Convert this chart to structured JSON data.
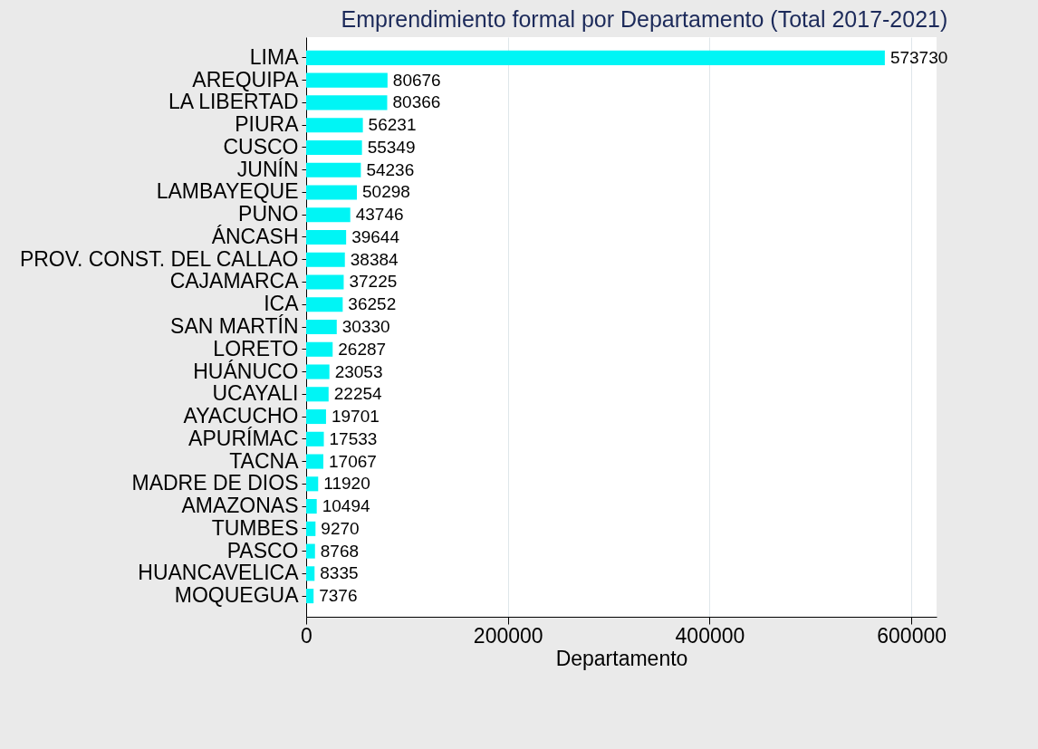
{
  "chart_data": {
    "type": "bar",
    "orientation": "horizontal",
    "title": "Emprendimiento formal por Departamento (Total 2017-2021)",
    "xlabel": "Departamento",
    "categories": [
      "LIMA",
      "AREQUIPA",
      "LA LIBERTAD",
      "PIURA",
      "CUSCO",
      "JUNÍN",
      "LAMBAYEQUE",
      "PUNO",
      "ÁNCASH",
      "PROV. CONST. DEL CALLAO",
      "CAJAMARCA",
      "ICA",
      "SAN MARTÍN",
      "LORETO",
      "HUÁNUCO",
      "UCAYALI",
      "AYACUCHO",
      "APURÍMAC",
      "TACNA",
      "MADRE DE DIOS",
      "AMAZONAS",
      "TUMBES",
      "PASCO",
      "HUANCAVELICA",
      "MOQUEGUA"
    ],
    "values": [
      573730,
      80676,
      80366,
      56231,
      55349,
      54236,
      50298,
      43746,
      39644,
      38384,
      37225,
      36252,
      30330,
      26287,
      23053,
      22254,
      19701,
      17533,
      17067,
      11920,
      10494,
      9270,
      8768,
      8335,
      7376
    ],
    "color": "#00f5f5",
    "xlim": [
      0,
      625000
    ],
    "xticks": [
      0,
      200000,
      400000,
      600000
    ],
    "grid": "x",
    "data_labels": true
  }
}
